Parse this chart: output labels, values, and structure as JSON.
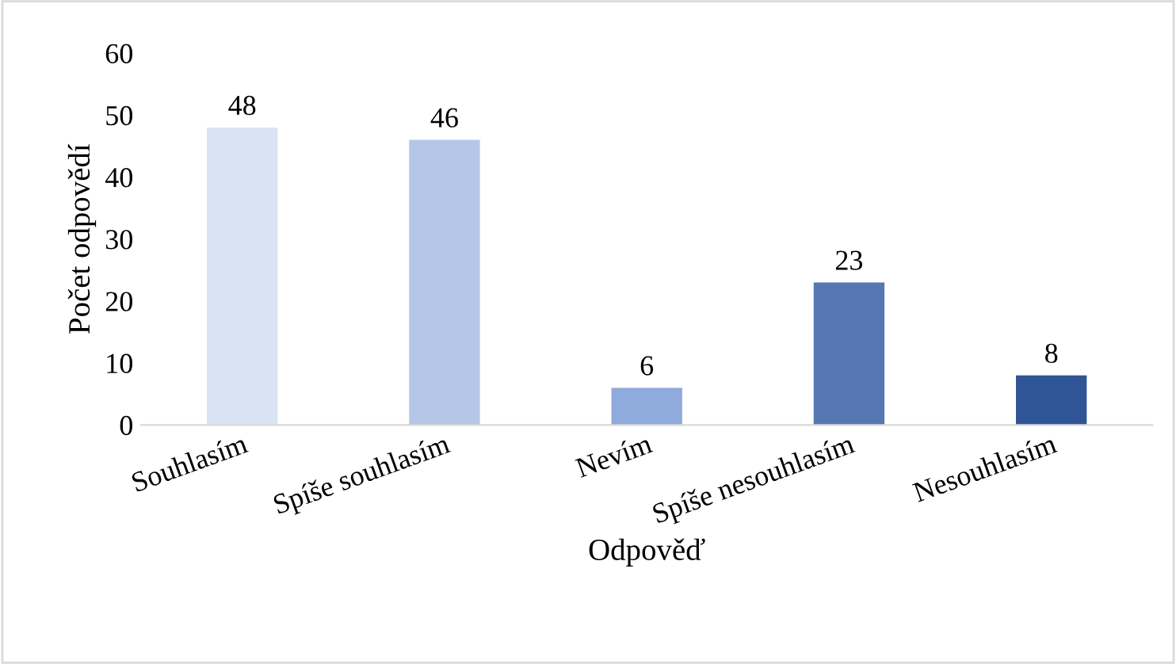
{
  "chart_data": {
    "type": "bar",
    "xlabel": "Odpověď",
    "ylabel": "Počet odpovědí",
    "categories": [
      "Souhlasím",
      "Spíše souhlasím",
      "Nevím",
      "Spíše nesouhlasím",
      "Nesouhlasím"
    ],
    "values": [
      48,
      46,
      6,
      23,
      8
    ],
    "colors": [
      "#dae3f3",
      "#b4c7e7",
      "#8faadc",
      "#5677b2",
      "#2f5597"
    ],
    "ylim": [
      0,
      60
    ],
    "yticks": [
      0,
      10,
      20,
      30,
      40,
      50,
      60
    ],
    "grid": false,
    "data_labels": true
  }
}
